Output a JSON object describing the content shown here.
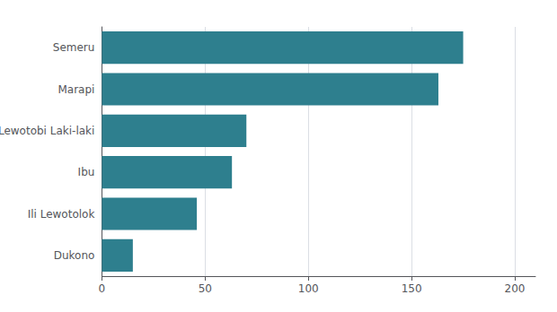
{
  "chart_data": {
    "type": "bar",
    "orientation": "horizontal",
    "categories": [
      "Dukono",
      "Ili Lewotolok",
      "Ibu",
      "Lewotobi Laki-laki",
      "Marapi",
      "Semeru"
    ],
    "values": [
      15,
      46,
      63,
      70,
      163,
      175
    ],
    "color": "#2e7f8e",
    "xlim": [
      0,
      210
    ],
    "xticks": [
      0,
      50,
      100,
      150,
      200
    ],
    "grid": true
  }
}
